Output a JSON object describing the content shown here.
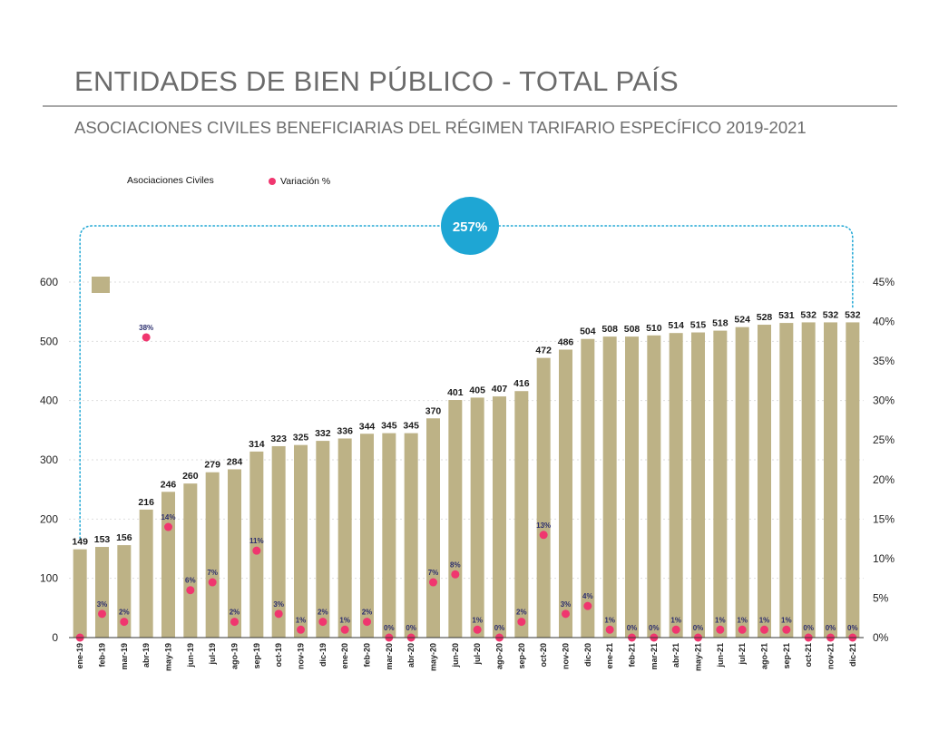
{
  "header": {
    "title": "ENTIDADES DE BIEN PÚBLICO - TOTAL PAÍS",
    "subtitle": "ASOCIACIONES CIVILES BENEFICIARIAS DEL RÉGIMEN TARIFARIO ESPECÍFICO 2019-2021"
  },
  "chart_data": {
    "type": "bar",
    "categories": [
      "ene-19",
      "feb-19",
      "mar-19",
      "abr-19",
      "may-19",
      "jun-19",
      "jul-19",
      "ago-19",
      "sep-19",
      "oct-19",
      "nov-19",
      "dic-19",
      "ene-20",
      "feb-20",
      "mar-20",
      "abr-20",
      "may-20",
      "jun-20",
      "jul-20",
      "ago-20",
      "sep-20",
      "oct-20",
      "nov-20",
      "dic-20",
      "ene-21",
      "feb-21",
      "mar-21",
      "abr-21",
      "may-21",
      "jun-21",
      "jul-21",
      "ago-21",
      "sep-21",
      "oct-21",
      "nov-21",
      "dic-21"
    ],
    "series": [
      {
        "name": "Asociaciones Civiles",
        "axis": "left",
        "values": [
          149,
          153,
          156,
          216,
          246,
          260,
          279,
          284,
          314,
          323,
          325,
          332,
          336,
          344,
          345,
          345,
          370,
          401,
          405,
          407,
          416,
          472,
          486,
          504,
          508,
          508,
          510,
          514,
          515,
          518,
          524,
          528,
          531,
          532,
          532,
          532
        ]
      },
      {
        "name": "Variación %",
        "axis": "right",
        "values": [
          0,
          3,
          2,
          38,
          14,
          6,
          7,
          2,
          11,
          3,
          1,
          2,
          1,
          2,
          0,
          0,
          7,
          8,
          1,
          0,
          2,
          13,
          3,
          4,
          1,
          0,
          0,
          1,
          0,
          1,
          1,
          1,
          1,
          0,
          0,
          0
        ],
        "labels": [
          "",
          "3%",
          "2%",
          "38%",
          "14%",
          "6%",
          "7%",
          "2%",
          "11%",
          "3%",
          "1%",
          "2%",
          "1%",
          "2%",
          "0%",
          "0%",
          "7%",
          "8%",
          "1%",
          "0%",
          "2%",
          "13%",
          "3%",
          "4%",
          "1%",
          "0%",
          "0%",
          "1%",
          "0%",
          "1%",
          "1%",
          "1%",
          "1%",
          "0%",
          "0%",
          "0%"
        ]
      }
    ],
    "y_left": {
      "range": [
        0,
        600
      ],
      "ticks": [
        "0",
        "100",
        "200",
        "300",
        "400",
        "500",
        "600"
      ]
    },
    "y_right": {
      "range": [
        0,
        45
      ],
      "ticks": [
        "0%",
        "5%",
        "10%",
        "15%",
        "20%",
        "25%",
        "30%",
        "35%",
        "40%",
        "45%"
      ]
    },
    "grid": true,
    "legend": "top-left",
    "annotation": {
      "text": "257%",
      "color": "#1ea6d4"
    },
    "colors": {
      "bar": "#bdb286",
      "dot": "#f0366f",
      "bracket": "#1ea6d4"
    }
  }
}
